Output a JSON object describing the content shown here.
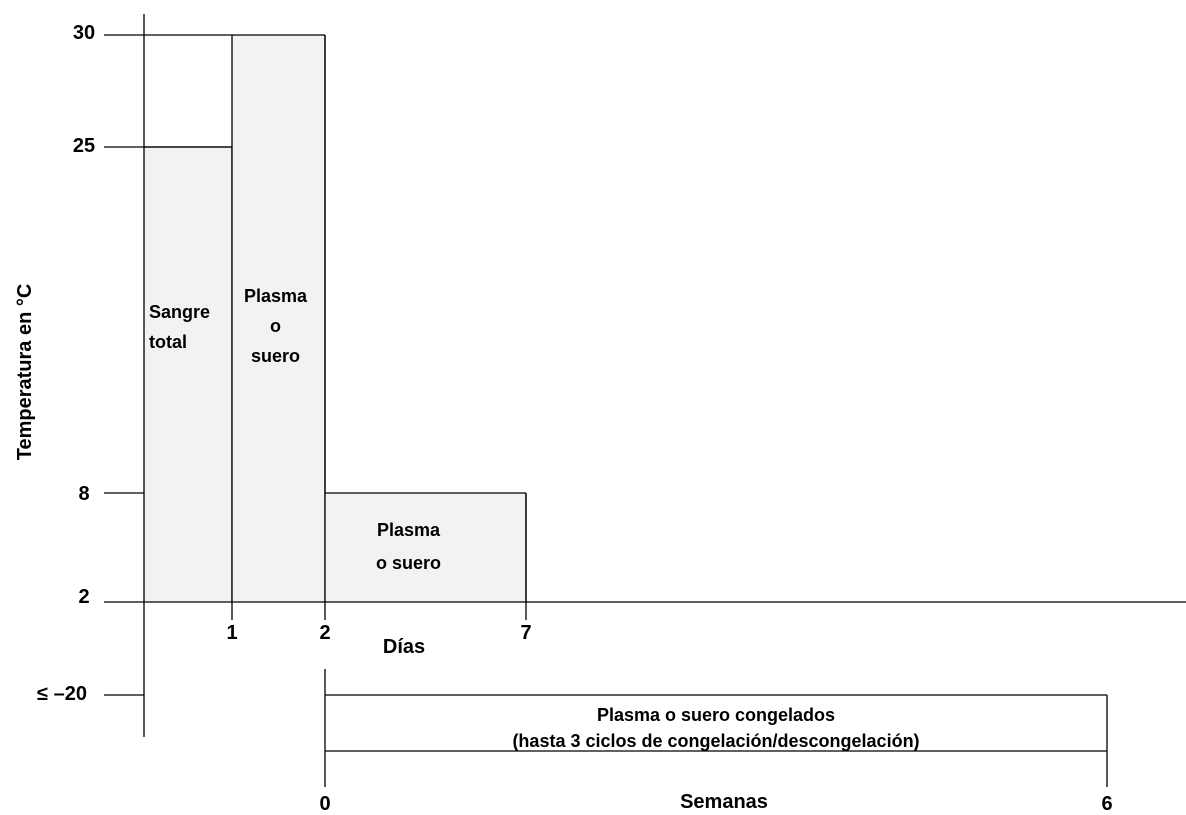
{
  "chart_data": {
    "type": "area",
    "ylabel": "Temperatura en °C",
    "y_tick_labels": [
      "30",
      "25",
      "8",
      "2",
      "≤ –20"
    ],
    "days_axis": {
      "label": "Días",
      "tick_labels": [
        "1",
        "2",
        "7"
      ],
      "ticks": [
        1,
        2,
        7
      ]
    },
    "weeks_axis": {
      "label": "Semanas",
      "tick_labels": [
        "0",
        "6"
      ],
      "ticks": [
        0,
        6
      ]
    },
    "regions": [
      {
        "label_lines": [
          "Sangre",
          "total"
        ],
        "axis": "days",
        "x_start": 0,
        "x_end": 1,
        "temp_min": "2",
        "temp_max": "25",
        "fill": "#f2f2f2"
      },
      {
        "label_lines": [
          "Plasma",
          "o",
          "suero"
        ],
        "axis": "days",
        "x_start": 1,
        "x_end": 2,
        "temp_min": "2",
        "temp_max": "30",
        "fill": "#f2f2f2"
      },
      {
        "label_lines": [
          "Plasma",
          "o suero"
        ],
        "axis": "days",
        "x_start": 2,
        "x_end": 7,
        "temp_min": "2",
        "temp_max": "8",
        "fill": "#f2f2f2"
      },
      {
        "label_lines": [
          "Plasma o suero congelados",
          "(hasta 3 ciclos de congelación/descongelación)"
        ],
        "axis": "weeks",
        "x_start": 0,
        "x_end": 6,
        "temp_min": "≤ –20",
        "temp_max": "≤ –20",
        "fill": "#ffffff"
      }
    ]
  }
}
